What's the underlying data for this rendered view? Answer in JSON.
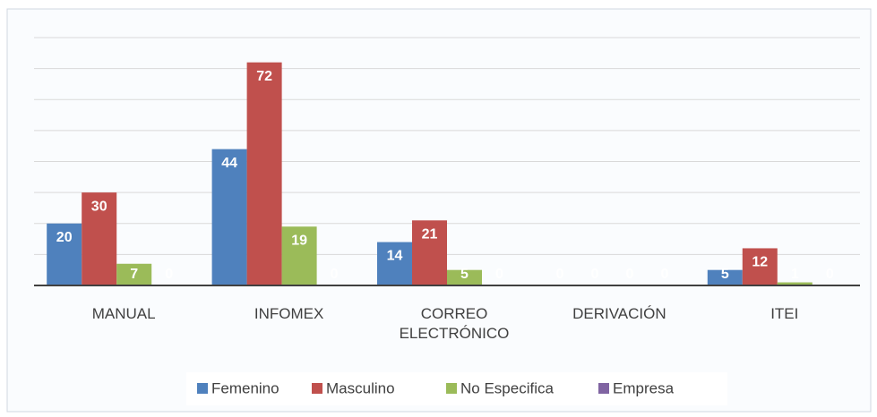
{
  "chart_data": {
    "type": "bar",
    "categories": [
      "MANUAL",
      "INFOMEX",
      "CORREO ELECTRÓNICO",
      "DERIVACIÓN",
      "ITEI"
    ],
    "series": [
      {
        "name": "Femenino",
        "color": "#4f81bd",
        "values": [
          20,
          44,
          14,
          0,
          5
        ]
      },
      {
        "name": "Masculino",
        "color": "#c0504d",
        "values": [
          30,
          72,
          21,
          0,
          12
        ]
      },
      {
        "name": "No Especifica",
        "color": "#9bbb59",
        "values": [
          7,
          19,
          5,
          0,
          1
        ]
      },
      {
        "name": "Empresa",
        "color": "#8064a2",
        "values": [
          0,
          0,
          0,
          0,
          0
        ]
      }
    ],
    "ylim": [
      0,
      80
    ],
    "yticks": [
      0,
      10,
      20,
      30,
      40,
      50,
      60,
      70,
      80
    ],
    "grid": true,
    "legend": "bottom"
  }
}
